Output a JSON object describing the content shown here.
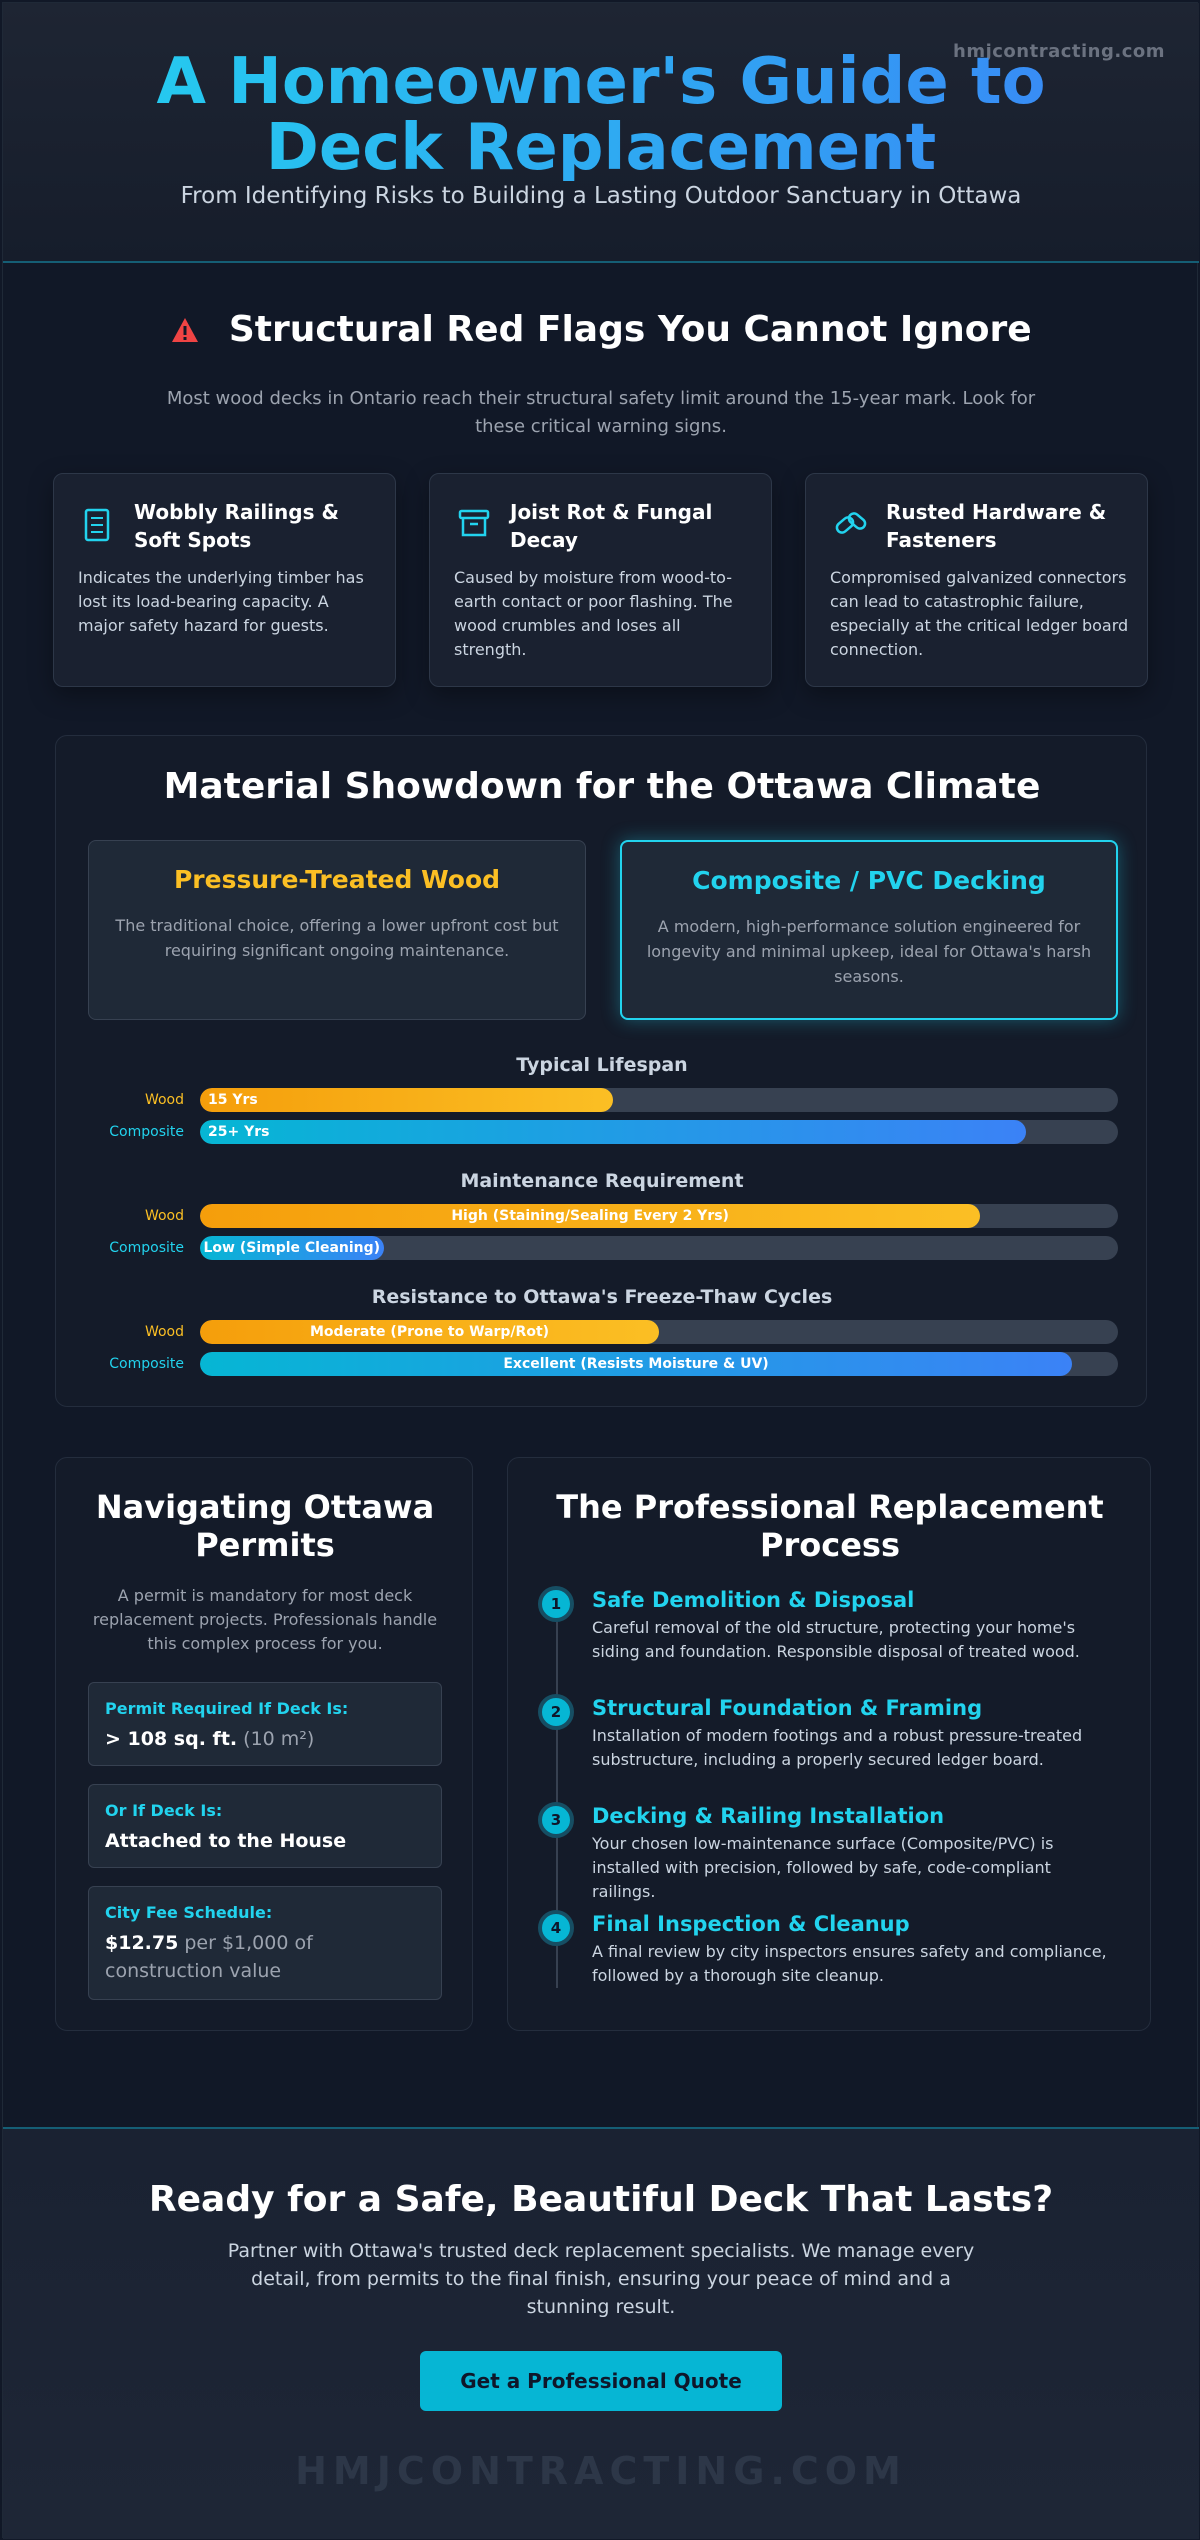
{
  "header": {
    "domain": "hmjcontracting.com",
    "title": "A Homeowner's Guide to Deck Replacement",
    "subtitle": "From Identifying Risks to Building a Lasting Outdoor Sanctuary in Ottawa"
  },
  "red_flags": {
    "icon": "warning-triangle-icon",
    "title": "Structural Red Flags You Cannot Ignore",
    "intro": "Most wood decks in Ontario reach their structural safety limit around the 15-year mark. Look for these critical warning signs.",
    "cards": [
      {
        "icon": "railing-icon",
        "title": "Wobbly Railings & Soft Spots",
        "text": "Indicates the underlying timber has lost its load-bearing capacity. A major safety hazard for guests."
      },
      {
        "icon": "box-icon",
        "title": "Joist Rot & Fungal Decay",
        "text": "Caused by moisture from wood-to-earth contact or poor flashing. The wood crumbles and loses all strength."
      },
      {
        "icon": "link-icon",
        "title": "Rusted Hardware & Fasteners",
        "text": "Compromised galvanized connectors can lead to catastrophic failure, especially at the critical ledger board connection."
      }
    ]
  },
  "materials": {
    "title": "Material Showdown for the Ottawa Climate",
    "wood": {
      "title": "Pressure-Treated Wood",
      "text": "The traditional choice, offering a lower upfront cost but requiring significant ongoing maintenance."
    },
    "composite": {
      "title": "Composite / PVC Decking",
      "text": "A modern, high-performance solution engineered for longevity and minimal upkeep, ideal for Ottawa's harsh seasons."
    },
    "wood_label": "Wood",
    "composite_label": "Composite",
    "metrics": [
      {
        "title": "Typical Lifespan",
        "wood": {
          "text": "15 Yrs",
          "level": 0.45
        },
        "composite": {
          "text": "25+ Yrs",
          "level": 0.9
        }
      },
      {
        "title": "Maintenance Requirement",
        "wood": {
          "text": "High (Staining/Sealing Every 2 Yrs)",
          "level": 0.85
        },
        "composite": {
          "text": "Low (Simple Cleaning)",
          "level": 0.2
        }
      },
      {
        "title": "Resistance to Ottawa's Freeze-Thaw Cycles",
        "wood": {
          "text": "Moderate (Prone to Warp/Rot)",
          "level": 0.5
        },
        "composite": {
          "text": "Excellent (Resists Moisture & UV)",
          "level": 0.95
        }
      }
    ]
  },
  "permits": {
    "title": "Navigating Ottawa Permits",
    "intro": "A permit is mandatory for most deck replacement projects. Professionals handle this complex process for you.",
    "items": [
      {
        "label": "Permit Required If Deck Is:",
        "value_bold": "> 108 sq. ft.",
        "value_rest": " (10 m²)"
      },
      {
        "label": "Or If Deck Is:",
        "value_bold": "Attached to the House",
        "value_rest": ""
      },
      {
        "label": "City Fee Schedule:",
        "value_bold": "$12.75",
        "value_rest": " per $1,000 of construction value"
      }
    ]
  },
  "process": {
    "title": "The Professional Replacement Process",
    "steps": [
      {
        "num": "1",
        "title": "Safe Demolition & Disposal",
        "text": "Careful removal of the old structure, protecting your home's siding and foundation. Responsible disposal of treated wood."
      },
      {
        "num": "2",
        "title": "Structural Foundation & Framing",
        "text": "Installation of modern footings and a robust pressure-treated substructure, including a properly secured ledger board."
      },
      {
        "num": "3",
        "title": "Decking & Railing Installation",
        "text": "Your chosen low-maintenance surface (Composite/PVC) is installed with precision, followed by safe, code-compliant railings."
      },
      {
        "num": "4",
        "title": "Final Inspection & Cleanup",
        "text": "A final review by city inspectors ensures safety and compliance, followed by a thorough site cleanup."
      }
    ]
  },
  "cta": {
    "title": "Ready for a Safe, Beautiful Deck That Lasts?",
    "text": "Partner with Ottawa's trusted deck replacement specialists. We manage every detail, from permits to the final finish, ensuring your peace of mind and a stunning result.",
    "button": "Get a Professional Quote",
    "watermark": "HMJCONTRACTING.COM"
  },
  "colors": {
    "accent": "#22d3ee",
    "wood": "#fbbf24",
    "warning": "#ef4444",
    "background": "#111827"
  }
}
